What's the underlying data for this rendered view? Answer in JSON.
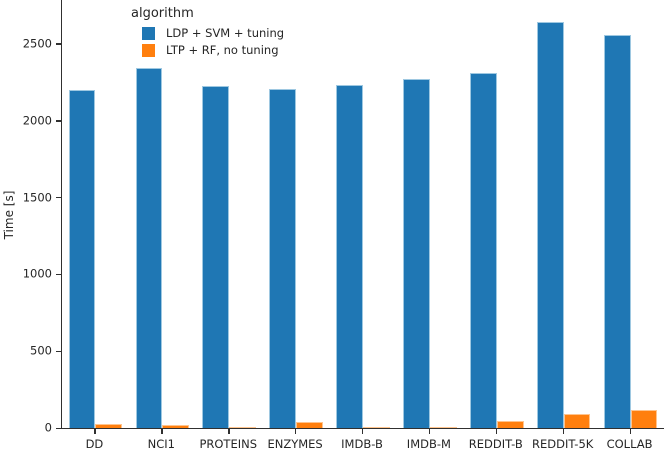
{
  "figure": {
    "ylabel": "Time [s]",
    "legend": {
      "title": "algorithm",
      "items": [
        {
          "label": "LDP + SVM + tuning",
          "color": "#1f77b4"
        },
        {
          "label": "LTP + RF, no tuning",
          "color": "#ff7f0e"
        }
      ]
    }
  },
  "chart_data": {
    "type": "bar",
    "title": "",
    "xlabel": "",
    "ylabel": "Time [s]",
    "categories": [
      "DD",
      "NCI1",
      "PROTEINS",
      "ENZYMES",
      "IMDB-B",
      "IMDB-M",
      "REDDIT-B",
      "REDDIT-5K",
      "COLLAB"
    ],
    "series": [
      {
        "name": "LDP + SVM + tuning",
        "color": "#1f77b4",
        "values": [
          2200,
          2345,
          2225,
          2205,
          2235,
          2270,
          2310,
          2645,
          2560
        ]
      },
      {
        "name": "LTP + RF, no tuning",
        "color": "#ff7f0e",
        "values": [
          25,
          20,
          8,
          40,
          8,
          6,
          43,
          88,
          119
        ]
      }
    ],
    "yticks": [
      0,
      500,
      1000,
      1500,
      2000,
      2500
    ],
    "ylim": [
      0,
      2786
    ],
    "legend_title": "algorithm",
    "legend_position": "upper left",
    "grid": false
  }
}
